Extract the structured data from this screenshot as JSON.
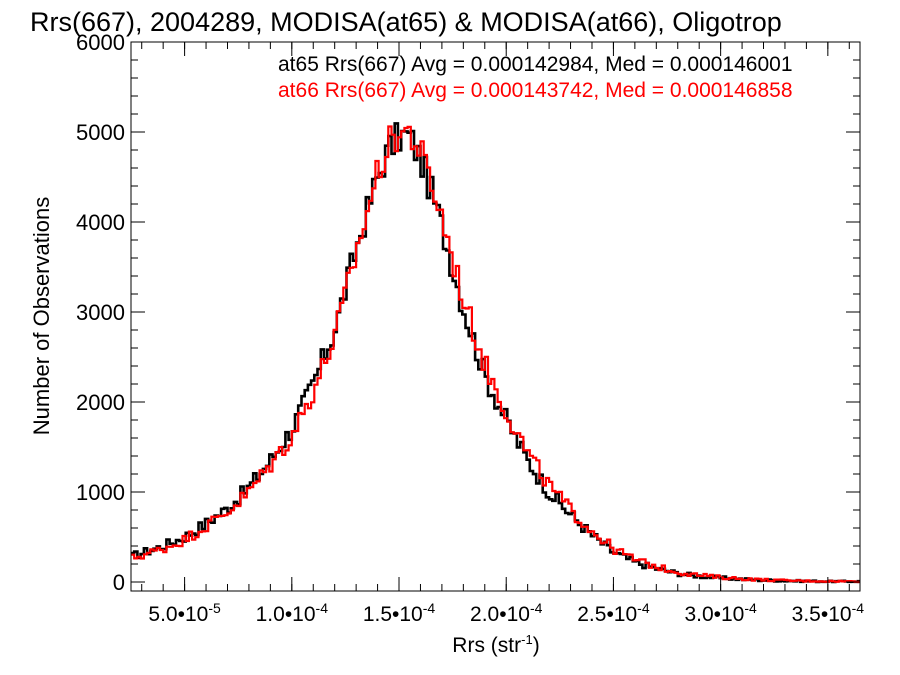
{
  "chart_data": {
    "type": "step-histogram",
    "title": "Rrs(667), 2004289, MODISA(at65) & MODISA(at66), Oligotrop",
    "xlabel": "Rrs (str",
    "xlabel_exp": "-1",
    "xlabel_close": ")",
    "ylabel": "Number of Observations",
    "xlim": [
      2.5e-05,
      0.000365
    ],
    "ylim": [
      -100,
      6000
    ],
    "x_ticks": [
      {
        "value": 5e-05,
        "mant": "5.0",
        "exp": "-5"
      },
      {
        "value": 0.0001,
        "mant": "1.0",
        "exp": "-4"
      },
      {
        "value": 0.00015,
        "mant": "1.5",
        "exp": "-4"
      },
      {
        "value": 0.0002,
        "mant": "2.0",
        "exp": "-4"
      },
      {
        "value": 0.00025,
        "mant": "2.5",
        "exp": "-4"
      },
      {
        "value": 0.0003,
        "mant": "3.0",
        "exp": "-4"
      },
      {
        "value": 0.00035,
        "mant": "3.5",
        "exp": "-4"
      }
    ],
    "y_ticks": [
      {
        "value": 0,
        "label": "0"
      },
      {
        "value": 1000,
        "label": "1000"
      },
      {
        "value": 2000,
        "label": "2000"
      },
      {
        "value": 3000,
        "label": "3000"
      },
      {
        "value": 4000,
        "label": "4000"
      },
      {
        "value": 5000,
        "label": "5000"
      },
      {
        "value": 6000,
        "label": "6000"
      }
    ],
    "legend": [
      {
        "text": "at65 Rrs(667) Avg = 0.000142984, Med = 0.000146001",
        "color": "#000000"
      },
      {
        "text": "at66 Rrs(667) Avg = 0.000143742, Med = 0.000146858",
        "color": "#ff0000"
      }
    ],
    "series": [
      {
        "name": "at65",
        "color": "#000000",
        "points": [
          [
            2.5e-05,
            280
          ],
          [
            4e-05,
            400
          ],
          [
            5e-05,
            500
          ],
          [
            6e-05,
            650
          ],
          [
            7e-05,
            820
          ],
          [
            8e-05,
            1050
          ],
          [
            9e-05,
            1350
          ],
          [
            0.0001,
            1700
          ],
          [
            0.00011,
            2200
          ],
          [
            0.00012,
            2800
          ],
          [
            0.00013,
            3700
          ],
          [
            0.00014,
            4500
          ],
          [
            0.000145,
            4800
          ],
          [
            0.00015,
            4950
          ],
          [
            0.000155,
            4950
          ],
          [
            0.00016,
            4700
          ],
          [
            0.000165,
            4350
          ],
          [
            0.00017,
            3950
          ],
          [
            0.000175,
            3500
          ],
          [
            0.00018,
            3050
          ],
          [
            0.00019,
            2300
          ],
          [
            0.0002,
            1800
          ],
          [
            0.00021,
            1350
          ],
          [
            0.00022,
            1000
          ],
          [
            0.00023,
            750
          ],
          [
            0.00024,
            520
          ],
          [
            0.00025,
            330
          ],
          [
            0.00026,
            220
          ],
          [
            0.00027,
            150
          ],
          [
            0.00028,
            95
          ],
          [
            0.00029,
            65
          ],
          [
            0.0003,
            45
          ],
          [
            0.00031,
            32
          ],
          [
            0.00032,
            20
          ],
          [
            0.00033,
            14
          ],
          [
            0.00034,
            10
          ],
          [
            0.00035,
            7
          ],
          [
            0.00036,
            6
          ]
        ]
      },
      {
        "name": "at66",
        "color": "#ff0000",
        "points": [
          [
            2.5e-05,
            260
          ],
          [
            4e-05,
            370
          ],
          [
            5e-05,
            470
          ],
          [
            6e-05,
            620
          ],
          [
            7e-05,
            780
          ],
          [
            8e-05,
            1000
          ],
          [
            9e-05,
            1300
          ],
          [
            0.0001,
            1620
          ],
          [
            0.00011,
            2120
          ],
          [
            0.00012,
            2720
          ],
          [
            0.00013,
            3650
          ],
          [
            0.00014,
            4550
          ],
          [
            0.000145,
            4850
          ],
          [
            0.00015,
            5000
          ],
          [
            0.000155,
            5000
          ],
          [
            0.00016,
            4780
          ],
          [
            0.000165,
            4430
          ],
          [
            0.00017,
            4050
          ],
          [
            0.000175,
            3600
          ],
          [
            0.00018,
            3150
          ],
          [
            0.00019,
            2420
          ],
          [
            0.0002,
            1900
          ],
          [
            0.00021,
            1430
          ],
          [
            0.00022,
            1070
          ],
          [
            0.00023,
            800
          ],
          [
            0.00024,
            570
          ],
          [
            0.00025,
            370
          ],
          [
            0.00026,
            250
          ],
          [
            0.00027,
            170
          ],
          [
            0.00028,
            110
          ],
          [
            0.00029,
            75
          ],
          [
            0.0003,
            52
          ],
          [
            0.00031,
            36
          ],
          [
            0.00032,
            24
          ],
          [
            0.00033,
            17
          ],
          [
            0.00034,
            12
          ],
          [
            0.00035,
            9
          ],
          [
            0.00036,
            7
          ]
        ]
      }
    ],
    "bin_width": 1.5e-06
  }
}
